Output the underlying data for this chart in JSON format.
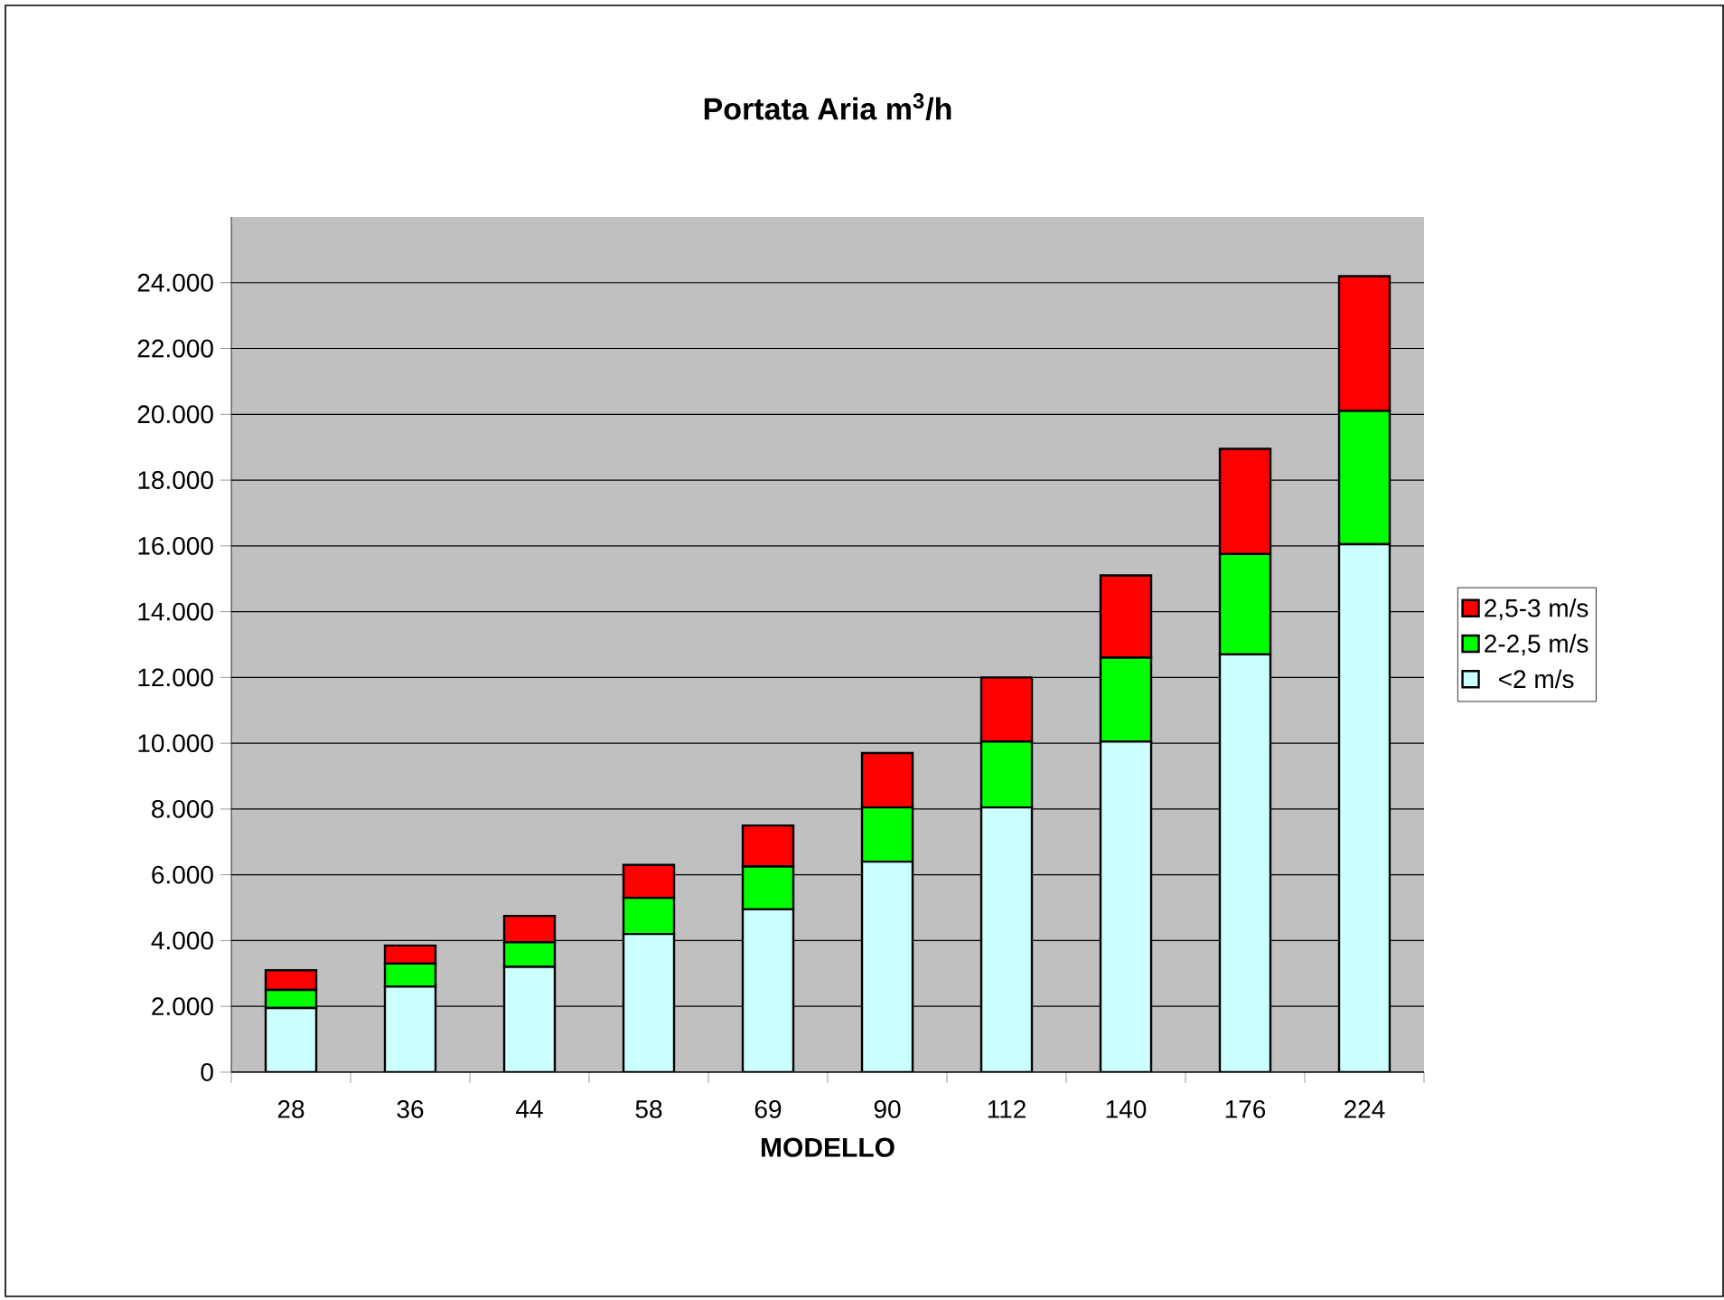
{
  "chart_data": {
    "type": "bar",
    "title": "Portata Aria m$^{3}$/h",
    "xlabel": "MODELLO",
    "categories": [
      "28",
      "36",
      "44",
      "58",
      "69",
      "90",
      "112",
      "140",
      "176",
      "224"
    ],
    "stacked": true,
    "series": [
      {
        "name": "<2 m/s",
        "color": "#ccffff",
        "values": [
          1950,
          2600,
          3200,
          4200,
          4950,
          6400,
          8050,
          10050,
          12700,
          16050
        ]
      },
      {
        "name": "2-2,5 m/s",
        "color": "#00ff00",
        "values": [
          550,
          700,
          750,
          1100,
          1300,
          1650,
          2000,
          2550,
          3050,
          4050
        ]
      },
      {
        "name": "2,5-3 m/s",
        "color": "#ff0000",
        "values": [
          600,
          550,
          800,
          1000,
          1250,
          1650,
          1950,
          2500,
          3200,
          4100
        ]
      }
    ],
    "ylim": [
      0,
      26000
    ],
    "yticks": [
      0,
      {
        "value": 2000,
        "label": "2.000"
      },
      {
        "value": 4000,
        "label": "4.000"
      },
      {
        "value": 6000,
        "label": "6.000"
      },
      {
        "value": 8000,
        "label": "8.000"
      },
      {
        "value": 10000,
        "label": "10.000"
      },
      {
        "value": 12000,
        "label": "12.000"
      },
      {
        "value": 14000,
        "label": "14.000"
      },
      {
        "value": 16000,
        "label": "16.000"
      },
      {
        "value": 18000,
        "label": "18.000"
      },
      {
        "value": 20000,
        "label": "20.000"
      },
      {
        "value": 22000,
        "label": "22.000"
      },
      {
        "value": 24000,
        "label": "24.000"
      }
    ],
    "grid": "y",
    "legend": "right"
  }
}
